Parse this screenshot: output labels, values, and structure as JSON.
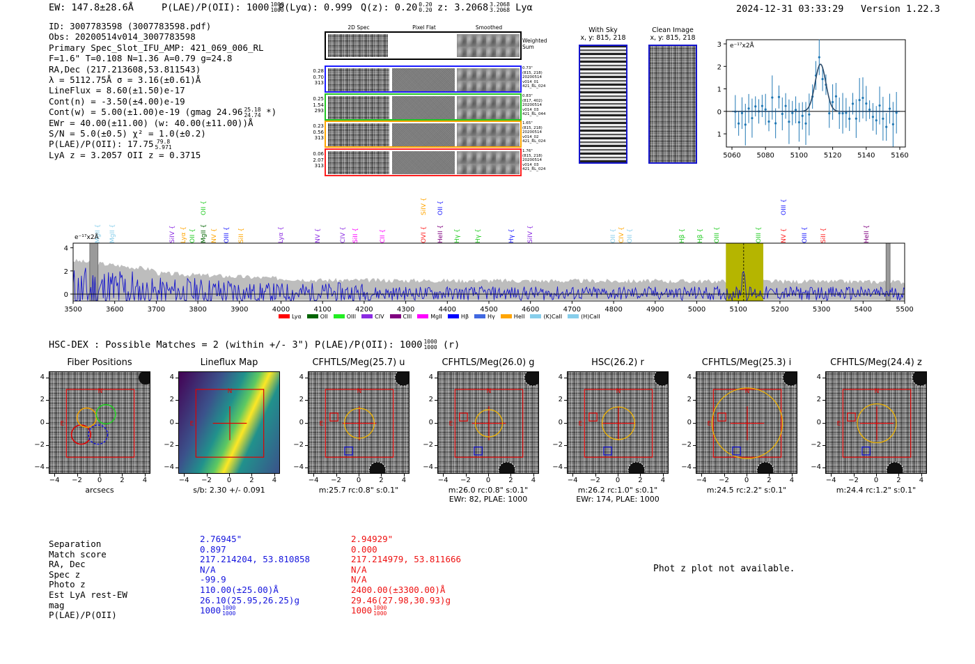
{
  "header": {
    "ew": "EW: 147.8±28.6Å",
    "plae_label": "P(LAE)/P(OII): 1000",
    "plae_hi": "1000",
    "plae_lo": "1000",
    "plya": "P(Lyα): 0.999",
    "qz_label": "Q(z): 0.20",
    "qz_hi": "0.20",
    "qz_lo": "0.20",
    "z_label": "z: 3.2068",
    "z_hi": "3.2068",
    "z_lo": "3.2068",
    "z_line": "Lyα",
    "timestamp": "2024-12-31 03:33:29",
    "version": "Version 1.22.3"
  },
  "info": {
    "id": "ID: 3007783598 (3007783598.pdf)",
    "obs": "Obs: 20200514v014_3007783598",
    "primary": "Primary Spec_Slot_IFU_AMP: 421_069_006_RL",
    "fparams": "F=1.6\"  T=0.108  N=1.36  A=0.79  g=24.8",
    "radec": "RA,Dec (217.213608,53.811543)",
    "lambda": "λ = 5112.75Å   σ = 3.16(±0.61)Å",
    "lineflux": "LineFlux = 8.60(±1.50)e-17",
    "contn": "Cont(n) = -3.50(±4.00)e-19",
    "contw": "Cont(w) = 5.00(±1.00)e-19 (gmag 24.96",
    "contw_hi": "25.18",
    "contw_lo": "24.74",
    "contw_end": "*)",
    "ewr": "EWr = 40.00(±11.00) (w: 40.00(±11.00))Å",
    "sn": "S/N = 5.0(±0.5)  χ² = 1.0(±0.2)",
    "plae": "P(LAE)/P(OII): 17.75",
    "plae_hi": "79.8",
    "plae_lo": "5.971",
    "lyaz": "LyA z = 3.2057  OII z = 0.3715"
  },
  "cutouts": {
    "col_2d": "2D Spec",
    "col_flat": "Pixel Flat",
    "col_smooth": "Smoothed",
    "weighted_sum": "Weighted Sum",
    "rows": [
      {
        "v1": "0.28",
        "v2": "0.70",
        "v3": "313",
        "m1": "0.73\"",
        "m2": "(815, 218)",
        "m3": "20200514",
        "m4": "v014_01",
        "m5": "421_RL_024",
        "color": "#1a1aff"
      },
      {
        "v1": "0.25",
        "v2": "1.54",
        "v3": "293",
        "m1": "0.83\"",
        "m2": "(817, 402)",
        "m3": "20200514",
        "m4": "v014_03",
        "m5": "421_RL_044",
        "color": "#22c422"
      },
      {
        "v1": "0.23",
        "v2": "0.56",
        "v3": "313",
        "m1": "1.65\"",
        "m2": "(815, 218)",
        "m3": "20200514",
        "m4": "v014_02",
        "m5": "421_RL_024",
        "color": "#ffa500"
      },
      {
        "v1": "0.06",
        "v2": "2.07",
        "v3": "313",
        "m1": "1.76\"",
        "m2": "(815, 218)",
        "m3": "20200514",
        "m4": "v014_03",
        "m5": "421_RL_024",
        "color": "#ff2020"
      }
    ]
  },
  "sky": {
    "with_title": "With Sky",
    "with_sub": "x, y: 815, 218",
    "clean_title": "Clean Image",
    "clean_sub": "x, y: 815, 218"
  },
  "zoom_plot": {
    "unit": "e⁻¹⁷x2Å",
    "xticks": [
      "5060",
      "5080",
      "5100",
      "5120",
      "5140",
      "5160"
    ],
    "yticks": [
      "3",
      "2",
      "1",
      "0",
      "−1"
    ]
  },
  "chart_data": {
    "type": "line",
    "title": "",
    "xlabel": "",
    "ylabel": "e⁻¹⁷x2Å",
    "x_range": [
      3500,
      5500
    ],
    "ylim": [
      -0.6,
      4.4
    ],
    "xticks": [
      3500,
      3600,
      3700,
      3800,
      3900,
      4000,
      4100,
      4200,
      4300,
      4400,
      4500,
      4600,
      4700,
      4800,
      4900,
      5000,
      5100,
      5200,
      5300,
      5400,
      5500
    ],
    "yticks": [
      0,
      2,
      4
    ],
    "highlight": [
      5070,
      5160
    ],
    "line_center": 5112.75,
    "masked": [
      3540,
      3560
    ],
    "masked2": [
      5455,
      5465
    ],
    "series": [
      {
        "name": "flux",
        "color": "#1414cc"
      },
      {
        "name": "error",
        "color": "#bdbdbd"
      }
    ],
    "line_marks": [
      {
        "label": "MgII",
        "x": 3560,
        "color": "#87ceeb"
      },
      {
        "label": "MgII",
        "x": 3595,
        "color": "#87ceeb"
      },
      {
        "label": "SiIV",
        "x": 3740,
        "color": "#8b2be2"
      },
      {
        "label": "Lyα",
        "x": 3766,
        "color": "#ffa500"
      },
      {
        "label": "OII",
        "x": 3788,
        "color": "#22cc22"
      },
      {
        "label": "MgII",
        "x": 3815,
        "color": "#006400"
      },
      {
        "label": "OII",
        "x": 3815,
        "color": "#22cc22",
        "high": true
      },
      {
        "label": "NV",
        "x": 3840,
        "color": "#ffa500"
      },
      {
        "label": "OIII",
        "x": 3870,
        "color": "#1a1aff"
      },
      {
        "label": "SiII",
        "x": 3906,
        "color": "#ffa500"
      },
      {
        "label": "Lyα",
        "x": 4000,
        "color": "#8b2be2"
      },
      {
        "label": "NV",
        "x": 4090,
        "color": "#8b2be2"
      },
      {
        "label": "CIV",
        "x": 4150,
        "color": "#8b2be2"
      },
      {
        "label": "SiII",
        "x": 4180,
        "color": "#ff00ff"
      },
      {
        "label": "CII",
        "x": 4245,
        "color": "#ff00ff"
      },
      {
        "label": "OVI",
        "x": 4345,
        "color": "#ff2020"
      },
      {
        "label": "SiIV",
        "x": 4345,
        "color": "#ffa500",
        "high": true
      },
      {
        "label": "OII",
        "x": 4385,
        "color": "#1a1aff",
        "high": true
      },
      {
        "label": "HeII",
        "x": 4385,
        "color": "#800080"
      },
      {
        "label": "Hγ",
        "x": 4425,
        "color": "#22cc22"
      },
      {
        "label": "Hγ",
        "x": 4475,
        "color": "#22cc22"
      },
      {
        "label": "Hγ",
        "x": 4555,
        "color": "#1a1aff"
      },
      {
        "label": "SiIV",
        "x": 4600,
        "color": "#8b2be2"
      },
      {
        "label": "OII",
        "x": 4800,
        "color": "#87ceeb"
      },
      {
        "label": "CIV",
        "x": 4820,
        "color": "#ffa500"
      },
      {
        "label": "OII",
        "x": 4840,
        "color": "#87ceeb"
      },
      {
        "label": "Hβ",
        "x": 4965,
        "color": "#22cc22"
      },
      {
        "label": "Hβ",
        "x": 5010,
        "color": "#22cc22"
      },
      {
        "label": "OIII",
        "x": 5050,
        "color": "#22cc22"
      },
      {
        "label": "OIII",
        "x": 5150,
        "color": "#22cc22"
      },
      {
        "label": "NV",
        "x": 5210,
        "color": "#ff2020"
      },
      {
        "label": "OIII",
        "x": 5210,
        "color": "#1a1aff",
        "high": true
      },
      {
        "label": "OIII",
        "x": 5260,
        "color": "#1a1aff"
      },
      {
        "label": "SiII",
        "x": 5305,
        "color": "#ff2020"
      },
      {
        "label": "HeII",
        "x": 5410,
        "color": "#800080"
      }
    ],
    "legend": [
      {
        "label": "Lyα",
        "color": "#ff0000"
      },
      {
        "label": "OII",
        "color": "#006400"
      },
      {
        "label": "OIII",
        "color": "#22ee22"
      },
      {
        "label": "CIV",
        "color": "#8b2be2"
      },
      {
        "label": "CIII",
        "color": "#800080"
      },
      {
        "label": "MgII",
        "color": "#ff00ff"
      },
      {
        "label": "Hβ",
        "color": "#0000ff"
      },
      {
        "label": "Hγ",
        "color": "#4169e1"
      },
      {
        "label": "HeII",
        "color": "#ffa500"
      },
      {
        "label": "(K)CaII",
        "color": "#87ceeb"
      },
      {
        "label": "(H)CaII",
        "color": "#87ceeb"
      }
    ]
  },
  "hsc": {
    "title": "HSC-DEX : Possible Matches = 2 (within +/- 3\")  P(LAE)/P(OII): 1000",
    "hi": "1000",
    "lo": "1000",
    "suffix": "(r)"
  },
  "panels": [
    {
      "title": "Fiber Positions",
      "cap1": "arcsecs",
      "cap2": ""
    },
    {
      "title": "Lineflux Map",
      "cap1": "s/b: 2.30 +/- 0.091",
      "cap2": ""
    },
    {
      "title": "CFHTLS/Meg(25.7) u",
      "cap1": "m:25.7 rc:0.8\"  s:0.1\"",
      "cap2": ""
    },
    {
      "title": "CFHTLS/Meg(26.0) g",
      "cap1": "m:26.0 rc:0.8\"  s:0.1\"",
      "cap2": "EWr: 82, PLAE: 1000"
    },
    {
      "title": "HSC(26.2) r",
      "cap1": "m:26.2 rc:1.0\"  s:0.1\"",
      "cap2": "EWr: 174, PLAE: 1000"
    },
    {
      "title": "CFHTLS/Meg(25.3) i",
      "cap1": "m:24.5 rc:2.2\"  s:0.1\"",
      "cap2": ""
    },
    {
      "title": "CFHTLS/Meg(24.4) z",
      "cap1": "m:24.4 rc:1.2\"  s:0.1\"",
      "cap2": ""
    }
  ],
  "panel_ticks": {
    "x": [
      "−4",
      "−2",
      "0",
      "2",
      "4"
    ],
    "y": [
      "4",
      "2",
      "0",
      "−2",
      "−4"
    ],
    "north": "N",
    "east": "E"
  },
  "matches": {
    "labels": [
      "Separation",
      "Match score",
      "RA, Dec",
      "Spec z",
      "Photo z",
      "Est LyA rest-EW",
      "mag",
      "P(LAE)/P(OII)"
    ],
    "blue": [
      "2.76945\"",
      "0.897",
      "217.214204, 53.810858",
      "N/A",
      "-99.9",
      "110.00(±25.00)Å",
      "26.10(25.95,26.25)g",
      "1000"
    ],
    "blue_hi": "1000",
    "blue_lo": "1000",
    "red": [
      "2.94929\"",
      "0.000",
      "217.214979, 53.811666",
      "N/A",
      "N/A",
      "2400.00(±3300.00)Å",
      "29.46(27.98,30.93)g",
      "1000"
    ],
    "red_hi": "1000",
    "red_lo": "1000",
    "photz_note": "Phot z plot not available."
  }
}
